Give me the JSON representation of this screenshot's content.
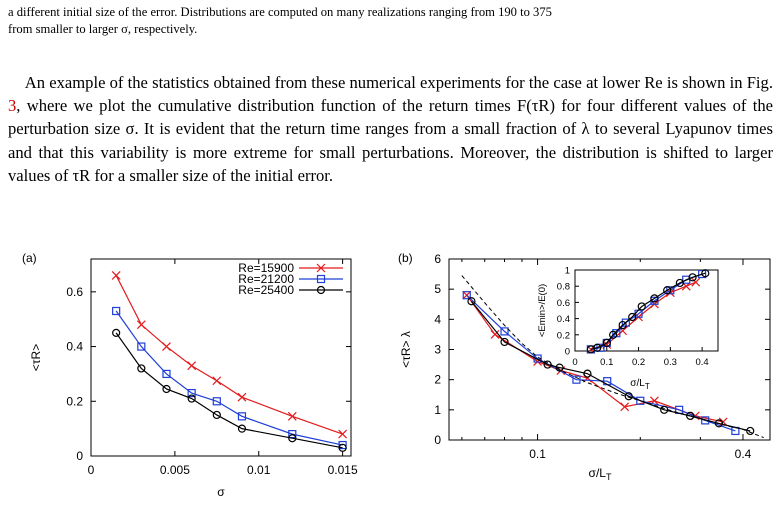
{
  "caption": {
    "line1": "a different initial size of the error. Distributions are computed on many realizations ranging from 190 to 375",
    "line2": "from smaller to larger σ, respectively."
  },
  "paragraph": {
    "part1": "An example of the statistics obtained from these numerical experiments for the case at lower Re is shown in Fig. ",
    "fig_ref": "3",
    "part2": ", where we plot the cumulative distribution function of the return times F(τR) for four different values of the perturbation size σ. It is evident that the return time ranges from a small fraction of λ to several Lyapunov times and that this variability is more extreme for small perturbations. Moreover, the distribution is shifted to larger values of τR for a smaller size of the initial error."
  },
  "chart_data": [
    {
      "type": "line",
      "panel_label": "(a)",
      "xlabel": "σ",
      "ylabel": "<τR>",
      "xlim": [
        0,
        0.0155
      ],
      "ylim": [
        0,
        0.72
      ],
      "xticks": [
        "0",
        "0.005",
        "0.01",
        "0.015"
      ],
      "yticks": [
        "0",
        "0.2",
        "0.4",
        "0.6"
      ],
      "legend": "top-right",
      "series": [
        {
          "name": "Re=15900",
          "marker": "x",
          "color": "#e41a1c",
          "x": [
            0.0015,
            0.003,
            0.0045,
            0.006,
            0.0075,
            0.009,
            0.012,
            0.015
          ],
          "y": [
            0.66,
            0.48,
            0.4,
            0.33,
            0.275,
            0.215,
            0.145,
            0.08
          ]
        },
        {
          "name": "Re=21200",
          "marker": "square",
          "color": "#1f3fd6",
          "x": [
            0.0015,
            0.003,
            0.0045,
            0.006,
            0.0075,
            0.009,
            0.012,
            0.015
          ],
          "y": [
            0.53,
            0.4,
            0.3,
            0.23,
            0.2,
            0.145,
            0.08,
            0.04
          ]
        },
        {
          "name": "Re=25400",
          "marker": "circle",
          "color": "#000000",
          "x": [
            0.0015,
            0.003,
            0.0045,
            0.006,
            0.0075,
            0.009,
            0.012,
            0.015
          ],
          "y": [
            0.45,
            0.32,
            0.245,
            0.21,
            0.15,
            0.1,
            0.065,
            0.03
          ]
        }
      ]
    },
    {
      "type": "line",
      "panel_label": "(b)",
      "xlabel": "σ/LT",
      "ylabel": "<τR> λ",
      "xscale": "log",
      "xlim": [
        0.055,
        0.48
      ],
      "ylim": [
        0,
        6
      ],
      "xticks": [
        "0.1",
        "0.4"
      ],
      "yticks": [
        "0",
        "1",
        "2",
        "3",
        "4",
        "5",
        "6"
      ],
      "series": [
        {
          "name": "",
          "marker": "x",
          "color": "#e41a1c",
          "x": [
            0.062,
            0.075,
            0.1,
            0.117,
            0.14,
            0.18,
            0.22,
            0.29,
            0.35
          ],
          "y": [
            4.8,
            3.5,
            2.6,
            2.3,
            2.05,
            1.1,
            1.3,
            0.8,
            0.6
          ]
        },
        {
          "name": "",
          "marker": "square",
          "color": "#1f3fd6",
          "x": [
            0.062,
            0.08,
            0.1,
            0.13,
            0.16,
            0.2,
            0.26,
            0.31,
            0.38
          ],
          "y": [
            4.8,
            3.6,
            2.7,
            2.0,
            1.95,
            1.3,
            1.0,
            0.65,
            0.3
          ]
        },
        {
          "name": "",
          "marker": "circle",
          "color": "#000000",
          "x": [
            0.064,
            0.08,
            0.107,
            0.116,
            0.14,
            0.185,
            0.235,
            0.28,
            0.34,
            0.42
          ],
          "y": [
            4.6,
            3.25,
            2.5,
            2.4,
            2.2,
            1.45,
            1.0,
            0.8,
            0.55,
            0.3
          ]
        },
        {
          "name": "",
          "marker": "none",
          "color": "#000000",
          "dash": true,
          "x": [
            0.06,
            0.07,
            0.08,
            0.09,
            0.1,
            0.12,
            0.14,
            0.17,
            0.2,
            0.25,
            0.3,
            0.35,
            0.4,
            0.46
          ],
          "y": [
            5.45,
            4.55,
            3.8,
            3.2,
            2.75,
            2.25,
            1.9,
            1.55,
            1.3,
            0.95,
            0.7,
            0.5,
            0.35,
            0.08
          ]
        }
      ]
    },
    {
      "type": "line",
      "panel_label": "inset",
      "xlabel": "σ/LT",
      "ylabel": "<Emin>/E(0)",
      "xlim": [
        0,
        0.45
      ],
      "ylim": [
        0,
        1
      ],
      "xticks": [
        "0",
        "0.1",
        "0.2",
        "0.3",
        "0.4"
      ],
      "yticks": [
        "0",
        "0.2",
        "0.4",
        "0.6",
        "0.8",
        "1"
      ],
      "series": [
        {
          "name": "",
          "marker": "x",
          "color": "#e41a1c",
          "x": [
            0.05,
            0.1,
            0.15,
            0.2,
            0.25,
            0.3,
            0.35,
            0.38
          ],
          "y": [
            0.02,
            0.08,
            0.25,
            0.42,
            0.58,
            0.72,
            0.8,
            0.85
          ]
        },
        {
          "name": "",
          "marker": "square",
          "color": "#1f3fd6",
          "x": [
            0.05,
            0.08,
            0.1,
            0.13,
            0.16,
            0.2,
            0.25,
            0.3,
            0.35,
            0.4
          ],
          "y": [
            0.02,
            0.04,
            0.1,
            0.22,
            0.35,
            0.46,
            0.62,
            0.75,
            0.88,
            0.95
          ]
        },
        {
          "name": "",
          "marker": "circle",
          "color": "#000000",
          "x": [
            0.05,
            0.07,
            0.1,
            0.12,
            0.15,
            0.18,
            0.21,
            0.25,
            0.29,
            0.33,
            0.37,
            0.41
          ],
          "y": [
            0.02,
            0.04,
            0.1,
            0.2,
            0.32,
            0.42,
            0.55,
            0.65,
            0.75,
            0.84,
            0.91,
            0.96
          ]
        }
      ]
    }
  ]
}
